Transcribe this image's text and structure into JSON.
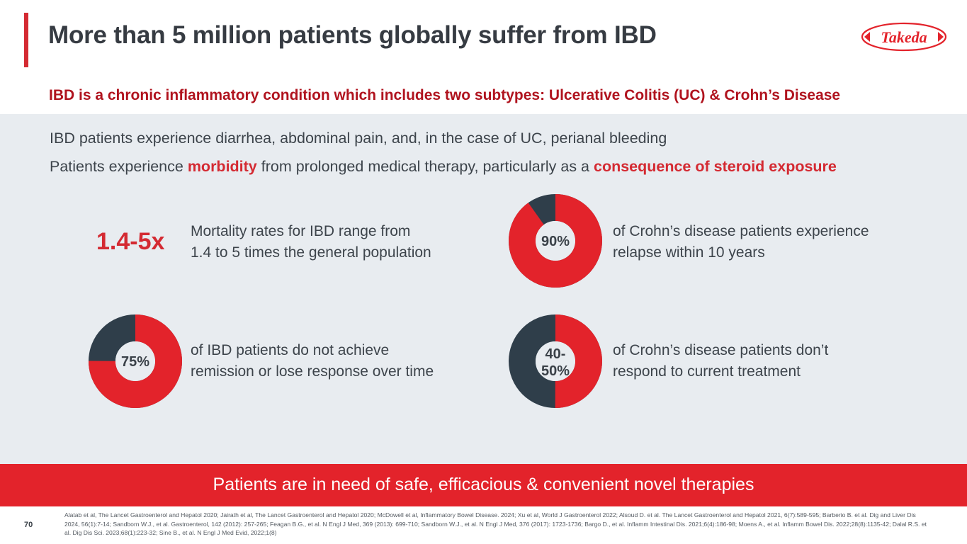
{
  "slide": {
    "title": "More than 5 million patients globally suffer from IBD",
    "subtitle": "IBD is a chronic inflammatory condition which includes two subtypes: Ulcerative Colitis (UC) & Crohn’s Disease",
    "logo_text": "Takeda",
    "page_number": "70"
  },
  "bullets": {
    "b1": "IBD patients experience diarrhea, abdominal pain, and, in the case of UC, perianal bleeding",
    "b2_a": "Patients experience ",
    "b2_hl1": "morbidity",
    "b2_b": " from prolonged medical therapy, particularly as a ",
    "b2_hl2": "consequence of steroid exposure"
  },
  "stats": [
    {
      "value_text": "1.4-5x",
      "lines": [
        "Mortality rates for IBD range from",
        "1.4 to 5 times the general population"
      ]
    },
    {
      "value_text": "90%",
      "fraction": 0.9,
      "lines": [
        "of Crohn’s disease patients experience",
        "relapse within 10 years"
      ]
    },
    {
      "value_text": "75%",
      "fraction": 0.75,
      "lines": [
        "of IBD patients do not achieve",
        "remission or lose response over time"
      ]
    },
    {
      "value_text_1": "40-",
      "value_text_2": "50%",
      "fraction": 0.5,
      "lines": [
        "of Crohn’s disease patients don’t",
        "respond to current treatment"
      ]
    }
  ],
  "banner": "Patients are in need of safe, efficacious & convenient novel therapies",
  "references": "Alatab et al, The Lancet Gastroenterol and Hepatol 2020;  Jairath et al, The Lancet Gastroenterol and Hepatol 2020; McDowell et al, Inflammatory Bowel Disease. 2024; Xu et al, World J Gastroenterol 2022;  Alsoud D. et al. The Lancet Gastroenterol and Hepatol 2021, 6(7):589-595; Barberio B. et al. Dig and Liver Dis 2024, 56(1):7-14;  Sandborn W.J., et al. Gastroenterol, 142 (2012): 257-265; Feagan B.G., et al. N Engl J Med, 369 (2013): 699-710; Sandborn W.J., et al. N Engl J Med, 376 (2017): 1723-1736; Bargo D., et al. Inflamm Intestinal Dis. 2021;6(4):186-98; Moens A., et al. Inflamm Bowel Dis. 2022;28(8):1135-42; Dalal R.S. et al. Dig Dis Sci. 2023;68(1):223-32; Sine B., et al. N Engl J Med Evid, 2022;1(8)",
  "colors": {
    "accent_red": "#d42a32",
    "dark_red": "#b0131e",
    "donut_dark": "#2f3e4a",
    "panel_bg": "#e8ecf0",
    "banner_bg": "#e3232b"
  }
}
